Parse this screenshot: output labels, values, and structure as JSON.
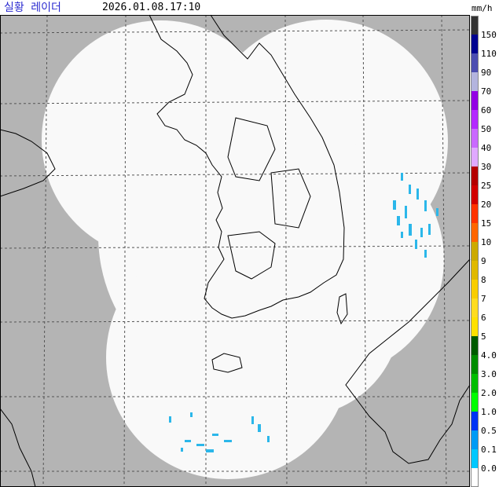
{
  "header": {
    "title": "실황 레이더",
    "timestamp": "2026.01.08.17:10",
    "unit": "mm/h"
  },
  "legend": {
    "labels": [
      "150",
      "110",
      "90",
      "70",
      "60",
      "50",
      "40",
      "30",
      "25",
      "20",
      "15",
      "10",
      "9",
      "8",
      "7",
      "6",
      "5",
      "4.0",
      "3.0",
      "2.0",
      "1.0",
      "0.5",
      "0.1",
      "0.0"
    ],
    "colors": [
      "#333333",
      "#000390",
      "#4c4eb1",
      "#b3b4de",
      "#9300e4",
      "#b329ff",
      "#c969ff",
      "#e0a9ff",
      "#b40000",
      "#d20000",
      "#ff3300",
      "#ff6600",
      "#ccaa00",
      "#e0b900",
      "#f9cd00",
      "#ffdc1f",
      "#ffe100",
      "#005a00",
      "#008c00",
      "#00be00",
      "#00ff00",
      "#0033f5",
      "#009bf5",
      "#00c8ff",
      "#ffffff"
    ]
  }
}
